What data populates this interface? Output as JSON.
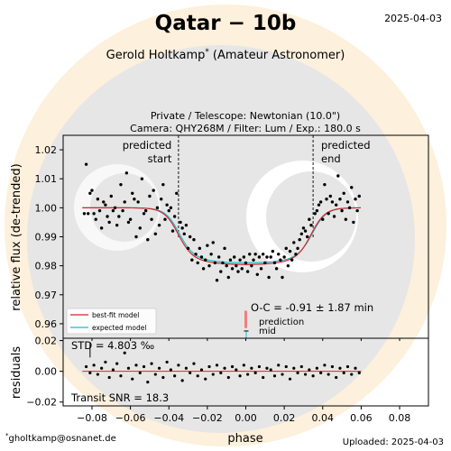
{
  "header": {
    "title": "Qatar − 10b",
    "date": "2025-04-03",
    "observer": "Gerold Holtkamp",
    "observer_mark": "*",
    "observer_role": "(Amateur Astronomer)",
    "setup_line1": "Private / Telescope: Newtonian (10.0\")",
    "setup_line2": "Camera: QHY268M / Filter: Lum / Exp.: 180.0 s"
  },
  "footer": {
    "contact_mark": "*",
    "contact": "gholtkamp@osnanet.de",
    "uploaded": "Uploaded: 2025-04-03"
  },
  "colors": {
    "bestfit": "#d62728",
    "expected": "#17becf",
    "points": "#000000",
    "oc_marker": "#f08080",
    "watermark_bg": "#fdf0dc"
  },
  "chart_data": [
    {
      "type": "scatter",
      "name": "light curve",
      "ylabel": "relative flux (de-trended)",
      "xlim": [
        -0.095,
        0.095
      ],
      "ylim": [
        0.955,
        1.025
      ],
      "yticks": [
        "0.96",
        "0.97",
        "0.98",
        "0.99",
        "1.00",
        "1.01",
        "1.02"
      ],
      "ytick_values": [
        0.96,
        0.97,
        0.98,
        0.99,
        1.0,
        1.01,
        1.02
      ],
      "transit": {
        "ingress": -0.035,
        "egress": 0.035,
        "depth": 0.019,
        "baseline": 1.0
      },
      "annotations": {
        "predicted_start": "predicted start",
        "predicted_end": "predicted end",
        "oc": "O-C = -0.91 ± 1.87 min",
        "prediction_mid_label": "prediction",
        "prediction_mid_sub": "mid"
      },
      "legend": {
        "placement": "bottom-left",
        "entries": [
          "best-fit model",
          "expected model"
        ]
      },
      "points": [
        [
          -0.084,
          0.998
        ],
        [
          -0.083,
          1.015
        ],
        [
          -0.082,
          0.998
        ],
        [
          -0.081,
          1.005
        ],
        [
          -0.08,
          1.006
        ],
        [
          -0.079,
          0.998
        ],
        [
          -0.078,
          0.996
        ],
        [
          -0.077,
          1.003
        ],
        [
          -0.076,
          0.999
        ],
        [
          -0.075,
          0.993
        ],
        [
          -0.074,
          1.002
        ],
        [
          -0.073,
          1.001
        ],
        [
          -0.072,
          0.997
        ],
        [
          -0.071,
          0.995
        ],
        [
          -0.07,
          1.004
        ],
        [
          -0.069,
          0.999
        ],
        [
          -0.068,
          1.0
        ],
        [
          -0.067,
          0.994
        ],
        [
          -0.066,
          0.997
        ],
        [
          -0.065,
          1.008
        ],
        [
          -0.064,
          0.999
        ],
        [
          -0.063,
          1.002
        ],
        [
          -0.062,
          1.012
        ],
        [
          -0.061,
          0.995
        ],
        [
          -0.06,
          0.996
        ],
        [
          -0.059,
          1.005
        ],
        [
          -0.058,
          1.003
        ],
        [
          -0.057,
          0.99
        ],
        [
          -0.056,
          1.002
        ],
        [
          -0.055,
          0.993
        ],
        [
          -0.054,
          1.01
        ],
        [
          -0.053,
          0.998
        ],
        [
          -0.052,
          0.999
        ],
        [
          -0.051,
          0.989
        ],
        [
          -0.05,
          1.004
        ],
        [
          -0.049,
          0.996
        ],
        [
          -0.048,
          1.006
        ],
        [
          -0.047,
          0.991
        ],
        [
          -0.046,
          1.0
        ],
        [
          -0.045,
          0.994
        ],
        [
          -0.044,
          1.003
        ],
        [
          -0.043,
          1.008
        ],
        [
          -0.042,
          0.996
        ],
        [
          -0.041,
          1.001
        ],
        [
          -0.04,
          0.999
        ],
        [
          -0.039,
          1.0
        ],
        [
          -0.038,
          0.992
        ],
        [
          -0.037,
          0.997
        ],
        [
          -0.036,
          1.005
        ],
        [
          -0.034,
          0.995
        ],
        [
          -0.033,
          0.993
        ],
        [
          -0.032,
          0.991
        ],
        [
          -0.031,
          0.994
        ],
        [
          -0.03,
          0.986
        ],
        [
          -0.029,
          0.99
        ],
        [
          -0.028,
          0.982
        ],
        [
          -0.027,
          0.989
        ],
        [
          -0.026,
          0.984
        ],
        [
          -0.025,
          0.981
        ],
        [
          -0.024,
          0.986
        ],
        [
          -0.023,
          0.983
        ],
        [
          -0.022,
          0.979
        ],
        [
          -0.021,
          0.982
        ],
        [
          -0.02,
          0.987
        ],
        [
          -0.019,
          0.98
        ],
        [
          -0.018,
          0.984
        ],
        [
          -0.017,
          0.988
        ],
        [
          -0.016,
          0.981
        ],
        [
          -0.015,
          0.975
        ],
        [
          -0.014,
          0.983
        ],
        [
          -0.013,
          0.978
        ],
        [
          -0.012,
          0.981
        ],
        [
          -0.011,
          0.986
        ],
        [
          -0.01,
          0.98
        ],
        [
          -0.009,
          0.976
        ],
        [
          -0.008,
          0.982
        ],
        [
          -0.007,
          0.979
        ],
        [
          -0.006,
          0.983
        ],
        [
          -0.005,
          0.98
        ],
        [
          -0.004,
          0.978
        ],
        [
          -0.003,
          0.982
        ],
        [
          -0.002,
          0.979
        ],
        [
          -0.001,
          0.983
        ],
        [
          0.0,
          0.981
        ],
        [
          0.001,
          0.978
        ],
        [
          0.002,
          0.984
        ],
        [
          0.003,
          0.98
        ],
        [
          0.004,
          0.982
        ],
        [
          0.005,
          0.984
        ],
        [
          0.006,
          0.977
        ],
        [
          0.007,
          0.983
        ],
        [
          0.008,
          0.979
        ],
        [
          0.009,
          0.984
        ],
        [
          0.01,
          0.981
        ],
        [
          0.011,
          0.983
        ],
        [
          0.012,
          0.976
        ],
        [
          0.013,
          0.983
        ],
        [
          0.014,
          0.985
        ],
        [
          0.015,
          0.981
        ],
        [
          0.016,
          0.979
        ],
        [
          0.017,
          0.984
        ],
        [
          0.018,
          0.982
        ],
        [
          0.019,
          0.976
        ],
        [
          0.02,
          0.983
        ],
        [
          0.021,
          0.986
        ],
        [
          0.022,
          0.98
        ],
        [
          0.023,
          0.985
        ],
        [
          0.024,
          0.982
        ],
        [
          0.025,
          0.988
        ],
        [
          0.026,
          0.984
        ],
        [
          0.027,
          0.986
        ],
        [
          0.028,
          0.989
        ],
        [
          0.029,
          0.991
        ],
        [
          0.03,
          0.993
        ],
        [
          0.031,
          0.992
        ],
        [
          0.032,
          0.99
        ],
        [
          0.033,
          0.996
        ],
        [
          0.034,
          0.994
        ],
        [
          0.036,
          0.998
        ],
        [
          0.037,
          0.999
        ],
        [
          0.038,
          1.001
        ],
        [
          0.039,
          1.002
        ],
        [
          0.04,
          0.996
        ],
        [
          0.041,
          1.008
        ],
        [
          0.042,
          1.003
        ],
        [
          0.043,
          0.998
        ],
        [
          0.044,
          1.004
        ],
        [
          0.045,
          1.002
        ],
        [
          0.046,
          0.997
        ],
        [
          0.047,
          1.001
        ],
        [
          0.048,
          1.011
        ],
        [
          0.049,
          1.003
        ],
        [
          0.05,
          0.999
        ],
        [
          0.051,
          1.005
        ],
        [
          0.052,
          0.996
        ],
        [
          0.053,
          1.002
        ],
        [
          0.054,
          1.0
        ],
        [
          0.055,
          1.007
        ],
        [
          0.056,
          0.995
        ],
        [
          0.057,
          1.003
        ],
        [
          0.058,
          0.999
        ],
        [
          0.059,
          1.004
        ]
      ]
    },
    {
      "type": "scatter",
      "name": "residuals",
      "xlabel": "phase",
      "ylabel": "residuals",
      "xlim": [
        -0.095,
        0.095
      ],
      "ylim": [
        -0.0225,
        0.0215
      ],
      "xticks": [
        "−0.08",
        "−0.06",
        "−0.04",
        "−0.02",
        "0.00",
        "0.02",
        "0.04",
        "0.06",
        "0.08"
      ],
      "xtick_values": [
        -0.08,
        -0.06,
        -0.04,
        -0.02,
        0.0,
        0.02,
        0.04,
        0.06,
        0.08
      ],
      "yticks": [
        "−0.02",
        "0.00",
        "0.02"
      ],
      "ytick_values": [
        -0.02,
        0.0,
        0.02
      ],
      "std_label": "STD = 4.803 ‰",
      "snr_label": "Transit SNR = 18.3",
      "points": [
        [
          -0.083,
          0.003
        ],
        [
          -0.081,
          -0.001
        ],
        [
          -0.079,
          0.004
        ],
        [
          -0.077,
          -0.002
        ],
        [
          -0.075,
          0.002
        ],
        [
          -0.073,
          0.006
        ],
        [
          -0.071,
          -0.004
        ],
        [
          -0.069,
          0.001
        ],
        [
          -0.067,
          0.005
        ],
        [
          -0.065,
          -0.003
        ],
        [
          -0.063,
          0.012
        ],
        [
          -0.061,
          0.002
        ],
        [
          -0.059,
          -0.005
        ],
        [
          -0.057,
          0.004
        ],
        [
          -0.055,
          -0.001
        ],
        [
          -0.053,
          0.003
        ],
        [
          -0.051,
          -0.007
        ],
        [
          -0.049,
          0.005
        ],
        [
          -0.047,
          -0.002
        ],
        [
          -0.045,
          0.002
        ],
        [
          -0.043,
          -0.004
        ],
        [
          -0.041,
          0.006
        ],
        [
          -0.039,
          0.001
        ],
        [
          -0.037,
          -0.003
        ],
        [
          -0.035,
          0.004
        ],
        [
          -0.033,
          -0.006
        ],
        [
          -0.031,
          0.002
        ],
        [
          -0.029,
          -0.001
        ],
        [
          -0.027,
          0.005
        ],
        [
          -0.025,
          -0.003
        ],
        [
          -0.023,
          0.001
        ],
        [
          -0.021,
          -0.005
        ],
        [
          -0.019,
          0.003
        ],
        [
          -0.017,
          -0.002
        ],
        [
          -0.015,
          0.004
        ],
        [
          -0.013,
          -0.001
        ],
        [
          -0.011,
          0.002
        ],
        [
          -0.009,
          -0.004
        ],
        [
          -0.007,
          0.003
        ],
        [
          -0.005,
          0.001
        ],
        [
          -0.003,
          -0.003
        ],
        [
          -0.001,
          0.004
        ],
        [
          0.001,
          -0.002
        ],
        [
          0.003,
          0.002
        ],
        [
          0.005,
          -0.001
        ],
        [
          0.007,
          0.003
        ],
        [
          0.009,
          -0.004
        ],
        [
          0.011,
          0.002
        ],
        [
          0.013,
          0.001
        ],
        [
          0.015,
          -0.003
        ],
        [
          0.017,
          0.004
        ],
        [
          0.019,
          -0.002
        ],
        [
          0.021,
          0.003
        ],
        [
          0.023,
          -0.005
        ],
        [
          0.025,
          0.002
        ],
        [
          0.027,
          -0.001
        ],
        [
          0.029,
          0.003
        ],
        [
          0.031,
          -0.002
        ],
        [
          0.033,
          0.001
        ],
        [
          0.035,
          -0.003
        ],
        [
          0.037,
          0.002
        ],
        [
          0.039,
          -0.001
        ],
        [
          0.041,
          0.004
        ],
        [
          0.043,
          -0.002
        ],
        [
          0.045,
          0.003
        ],
        [
          0.047,
          -0.004
        ],
        [
          0.049,
          0.002
        ],
        [
          0.051,
          -0.001
        ],
        [
          0.053,
          0.003
        ],
        [
          0.055,
          -0.002
        ],
        [
          0.057,
          0.002
        ],
        [
          0.059,
          -0.001
        ]
      ]
    }
  ]
}
